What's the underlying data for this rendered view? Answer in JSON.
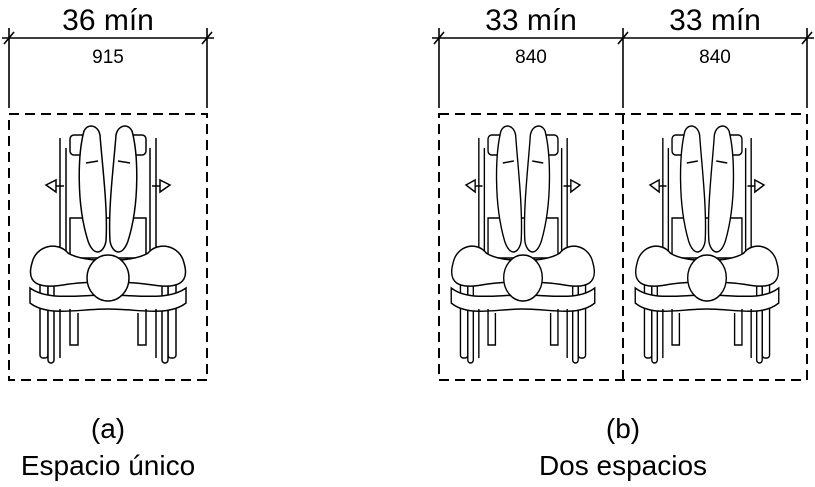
{
  "panel_a": {
    "dimension": {
      "imperial": "36 mín",
      "metric": "915"
    },
    "label": "(a)",
    "caption": "Espacio único"
  },
  "panel_b": {
    "dimensions": [
      {
        "imperial": "33 mín",
        "metric": "840"
      },
      {
        "imperial": "33 mín",
        "metric": "840"
      }
    ],
    "label": "(b)",
    "caption": "Dos espacios"
  },
  "icons": [
    "wheelchair-occupant-icon"
  ]
}
